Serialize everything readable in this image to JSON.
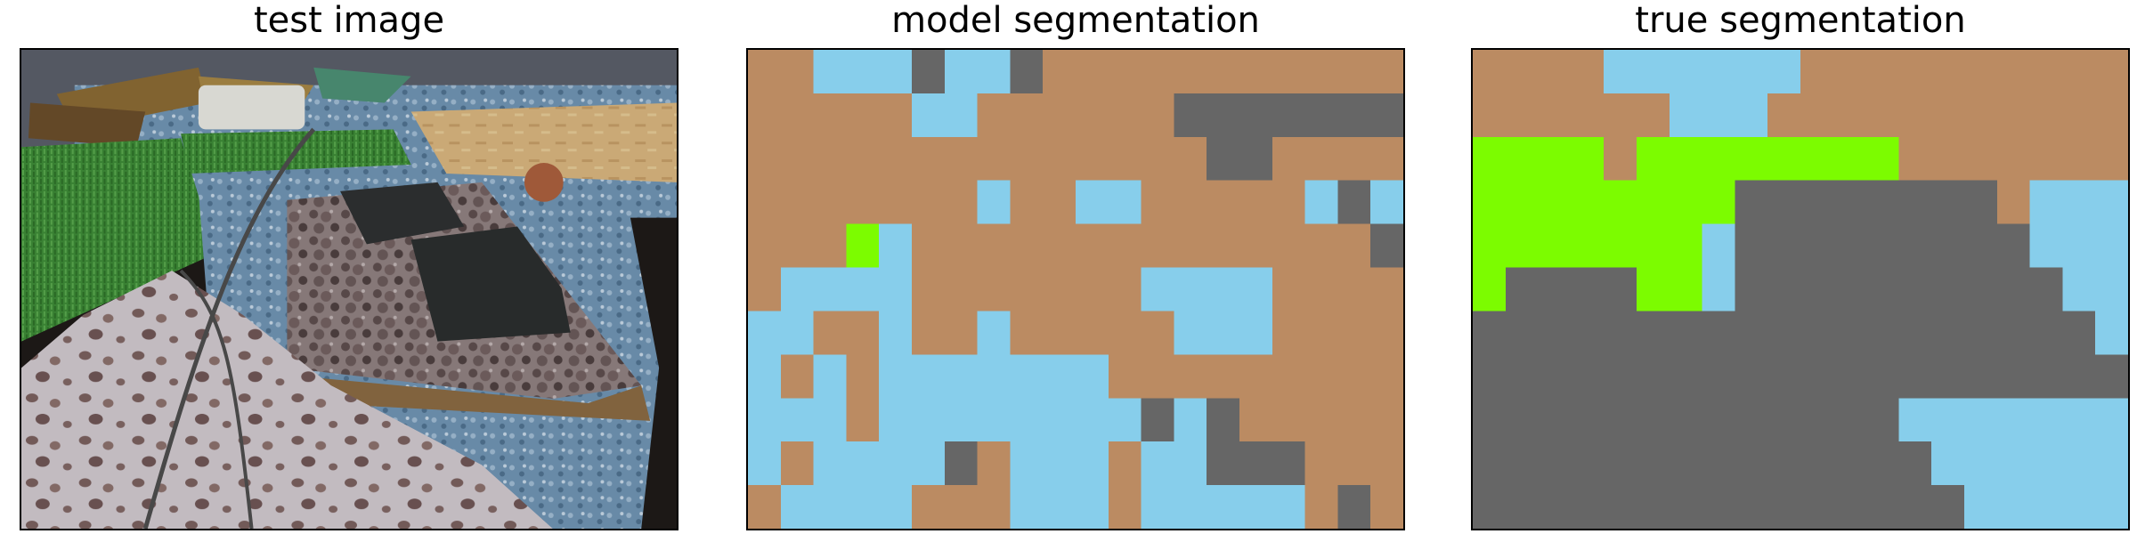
{
  "panels": {
    "test": {
      "title": "test image"
    },
    "model": {
      "title": "model segmentation"
    },
    "truth": {
      "title": "true segmentation"
    }
  },
  "palette": {
    "0": "#bb8b62",
    "1": "#87ceeb",
    "2": "#666666",
    "3": "#7cfc00"
  },
  "segmentation": {
    "model": [
      [
        0,
        0,
        1,
        1,
        1,
        2,
        1,
        1,
        2,
        0,
        0,
        0,
        0,
        0,
        0,
        0,
        0,
        0,
        0,
        0
      ],
      [
        0,
        0,
        0,
        0,
        0,
        1,
        1,
        0,
        0,
        0,
        0,
        0,
        0,
        2,
        2,
        2,
        2,
        2,
        2,
        2
      ],
      [
        0,
        0,
        0,
        0,
        0,
        0,
        0,
        0,
        0,
        0,
        0,
        0,
        0,
        0,
        2,
        2,
        0,
        0,
        0,
        0
      ],
      [
        0,
        0,
        0,
        0,
        0,
        0,
        0,
        1,
        0,
        0,
        1,
        1,
        0,
        0,
        0,
        0,
        0,
        1,
        2,
        1
      ],
      [
        0,
        0,
        0,
        3,
        1,
        0,
        0,
        0,
        0,
        0,
        0,
        0,
        0,
        0,
        0,
        0,
        0,
        0,
        0,
        2
      ],
      [
        0,
        1,
        1,
        1,
        1,
        0,
        0,
        0,
        0,
        0,
        0,
        0,
        1,
        1,
        1,
        1,
        0,
        0,
        0,
        0
      ],
      [
        1,
        1,
        0,
        0,
        1,
        0,
        0,
        1,
        0,
        0,
        0,
        0,
        0,
        1,
        1,
        1,
        0,
        0,
        0,
        0
      ],
      [
        1,
        0,
        1,
        0,
        1,
        1,
        1,
        1,
        1,
        1,
        1,
        0,
        0,
        0,
        0,
        0,
        0,
        0,
        0,
        0
      ],
      [
        1,
        1,
        1,
        0,
        1,
        1,
        1,
        1,
        1,
        1,
        1,
        1,
        2,
        1,
        2,
        0,
        0,
        0,
        0,
        0
      ],
      [
        1,
        0,
        1,
        1,
        1,
        1,
        2,
        0,
        1,
        1,
        1,
        0,
        1,
        1,
        2,
        2,
        2,
        0,
        0,
        0
      ],
      [
        0,
        1,
        1,
        1,
        1,
        0,
        0,
        0,
        1,
        1,
        1,
        0,
        1,
        1,
        1,
        1,
        1,
        0,
        2,
        0
      ]
    ],
    "truth": [
      [
        0,
        0,
        0,
        0,
        1,
        1,
        1,
        1,
        1,
        1,
        0,
        0,
        0,
        0,
        0,
        0,
        0,
        0,
        0,
        0
      ],
      [
        0,
        0,
        0,
        0,
        0,
        0,
        1,
        1,
        1,
        0,
        0,
        0,
        0,
        0,
        0,
        0,
        0,
        0,
        0,
        0
      ],
      [
        3,
        3,
        3,
        3,
        0,
        3,
        3,
        3,
        3,
        3,
        3,
        3,
        3,
        0,
        0,
        0,
        0,
        0,
        0,
        0
      ],
      [
        3,
        3,
        3,
        3,
        3,
        3,
        3,
        3,
        2,
        2,
        2,
        2,
        2,
        2,
        2,
        2,
        0,
        1,
        1,
        1
      ],
      [
        3,
        3,
        3,
        3,
        3,
        3,
        3,
        1,
        2,
        2,
        2,
        2,
        2,
        2,
        2,
        2,
        2,
        1,
        1,
        1
      ],
      [
        3,
        2,
        2,
        2,
        2,
        3,
        3,
        1,
        2,
        2,
        2,
        2,
        2,
        2,
        2,
        2,
        2,
        2,
        1,
        1
      ],
      [
        2,
        2,
        2,
        2,
        2,
        2,
        2,
        2,
        2,
        2,
        2,
        2,
        2,
        2,
        2,
        2,
        2,
        2,
        2,
        1
      ],
      [
        2,
        2,
        2,
        2,
        2,
        2,
        2,
        2,
        2,
        2,
        2,
        2,
        2,
        2,
        2,
        2,
        2,
        2,
        2,
        2
      ],
      [
        2,
        2,
        2,
        2,
        2,
        2,
        2,
        2,
        2,
        2,
        2,
        2,
        2,
        1,
        1,
        1,
        1,
        1,
        1,
        1
      ],
      [
        2,
        2,
        2,
        2,
        2,
        2,
        2,
        2,
        2,
        2,
        2,
        2,
        2,
        2,
        1,
        1,
        1,
        1,
        1,
        1
      ],
      [
        2,
        2,
        2,
        2,
        2,
        2,
        2,
        2,
        2,
        2,
        2,
        2,
        2,
        2,
        2,
        1,
        1,
        1,
        1,
        1
      ]
    ]
  }
}
